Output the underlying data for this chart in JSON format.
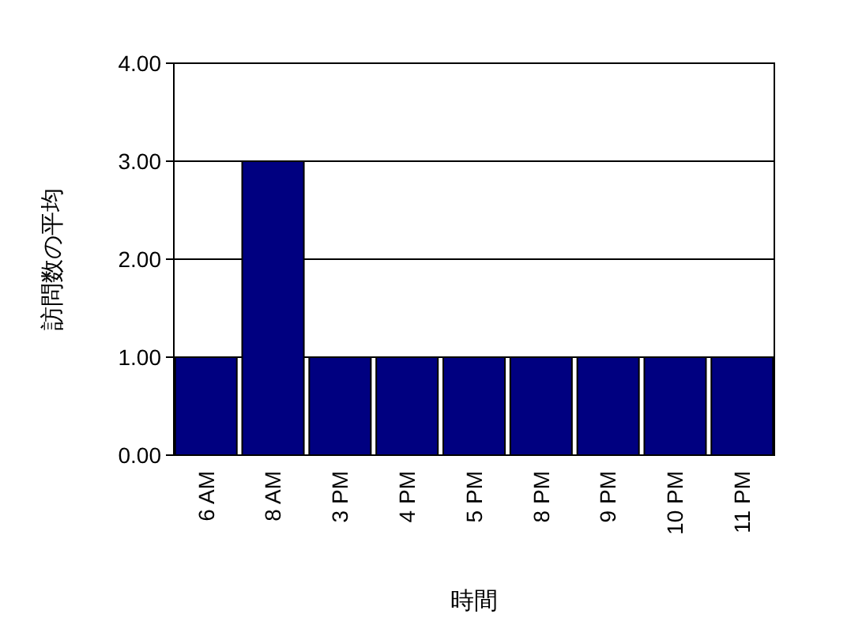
{
  "chart_data": {
    "type": "bar",
    "xlabel": "時間",
    "ylabel": "訪問数の平均",
    "categories": [
      "6 AM",
      "8 AM",
      "3 PM",
      "4 PM",
      "5 PM",
      "8 PM",
      "9 PM",
      "10 PM",
      "11 PM"
    ],
    "values": [
      1,
      3,
      1,
      1,
      1,
      1,
      1,
      1,
      1
    ],
    "color": "#000080",
    "ylim": [
      0,
      4
    ],
    "yticks": [
      {
        "value": 0,
        "label": "0.00"
      },
      {
        "value": 1,
        "label": "1.00"
      },
      {
        "value": 2,
        "label": "2.00"
      },
      {
        "value": 3,
        "label": "3.00"
      },
      {
        "value": 4,
        "label": "4.00"
      }
    ],
    "grid": "y"
  }
}
